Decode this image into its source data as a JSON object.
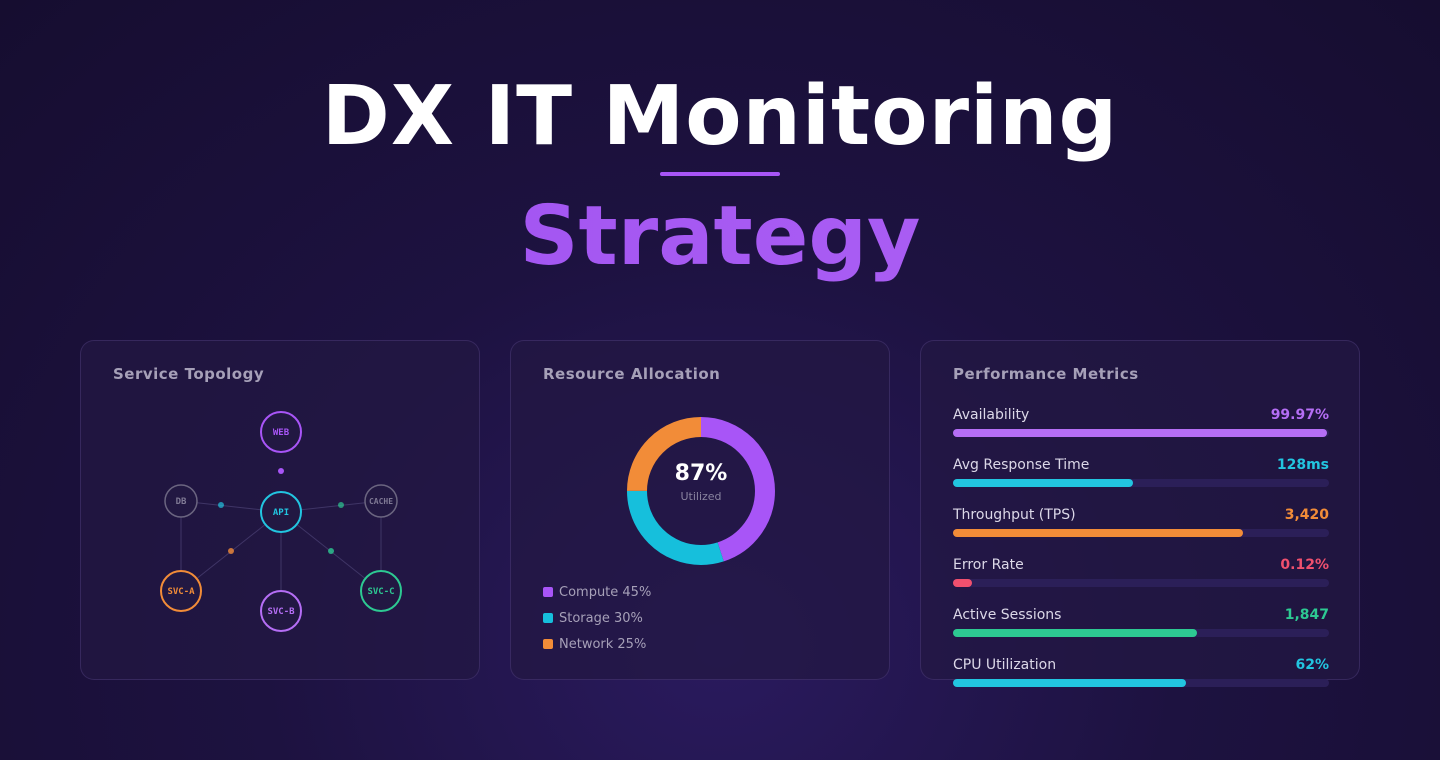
{
  "hero": {
    "title": "DX IT Monitoring",
    "subtitle": "Strategy"
  },
  "topology": {
    "title": "Service Topology",
    "nodes": [
      {
        "id": "web",
        "label": "WEB",
        "color": "#a855f7"
      },
      {
        "id": "db",
        "label": "DB",
        "color": "#6b6580"
      },
      {
        "id": "api",
        "label": "API",
        "color": "#22c5e0"
      },
      {
        "id": "cache",
        "label": "CACHE",
        "color": "#6b6580"
      },
      {
        "id": "svca",
        "label": "SVC-A",
        "color": "#f28c38"
      },
      {
        "id": "svcb",
        "label": "SVC-B",
        "color": "#b56ef5"
      },
      {
        "id": "svcc",
        "label": "SVC-C",
        "color": "#2dc992"
      }
    ]
  },
  "resource": {
    "title": "Resource Allocation",
    "center_value": "87%",
    "center_label": "Utilized",
    "segments": [
      {
        "name": "Compute",
        "percent": 45,
        "label": "Compute 45%",
        "color": "#a855f7"
      },
      {
        "name": "Storage",
        "percent": 30,
        "label": "Storage 30%",
        "color": "#16bfdc"
      },
      {
        "name": "Network",
        "percent": 25,
        "label": "Network 25%",
        "color": "#f28c38"
      }
    ]
  },
  "metrics": {
    "title": "Performance Metrics",
    "items": [
      {
        "label": "Availability",
        "value": "99.97%",
        "fill": 0.995,
        "color": "#b56ef5"
      },
      {
        "label": "Avg Response Time",
        "value": "128ms",
        "fill": 0.48,
        "color": "#22c5e0"
      },
      {
        "label": "Throughput (TPS)",
        "value": "3,420",
        "fill": 0.77,
        "color": "#f28c38"
      },
      {
        "label": "Error Rate",
        "value": "0.12%",
        "fill": 0.05,
        "color": "#f0506e"
      },
      {
        "label": "Active Sessions",
        "value": "1,847",
        "fill": 0.65,
        "color": "#2dc992"
      },
      {
        "label": "CPU Utilization",
        "value": "62%",
        "fill": 0.62,
        "color": "#22c5e0"
      }
    ]
  }
}
